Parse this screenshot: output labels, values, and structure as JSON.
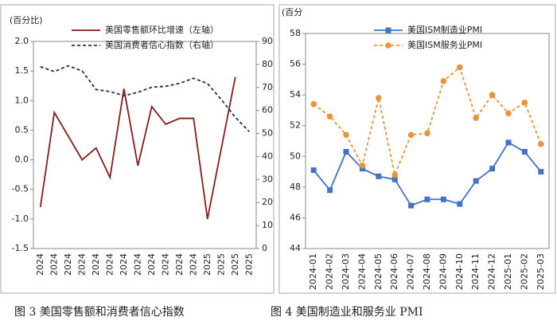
{
  "chart_data": [
    {
      "type": "line",
      "ylabel": "(百分比)",
      "categories": [
        "2024",
        "2024",
        "2024",
        "2024",
        "2024",
        "2024",
        "2024",
        "2024",
        "2024",
        "2024",
        "2024",
        "2024",
        "2025",
        "2025",
        "2025",
        "2025"
      ],
      "ylim": [
        -1.5,
        2.0
      ],
      "yticks": [
        -1.5,
        {
          "value": -1.0,
          "label": "-1.0"
        },
        -0.5,
        {
          "value": 0,
          "label": "0.0"
        },
        0.5,
        {
          "value": 1.0,
          "label": "1.0"
        },
        1.5,
        {
          "value": 2.0,
          "label": "2.0"
        }
      ],
      "y2lim": [
        0,
        90
      ],
      "y2ticks": [
        0,
        10,
        20,
        30,
        40,
        50,
        60,
        70,
        80,
        90
      ],
      "series": [
        {
          "name": "美国零售额环比增速（左轴）",
          "color": "#8b1a1a",
          "dashed": false,
          "values": [
            -0.8,
            0.8,
            0.4,
            0.0,
            0.2,
            -0.3,
            1.2,
            -0.1,
            0.9,
            0.6,
            0.7,
            0.7,
            -1.0,
            0.2,
            1.4,
            null
          ]
        },
        {
          "name": "美国消费者信心指数（右轴）",
          "color": "#1f2d5a",
          "dashed": true,
          "axis": "y2",
          "values": [
            79.0,
            76.9,
            79.4,
            77.2,
            69.1,
            68.2,
            66.4,
            67.9,
            70.1,
            70.5,
            71.8,
            74.0,
            71.7,
            64.7,
            57.0,
            50.8
          ]
        }
      ]
    },
    {
      "type": "line",
      "ylabel": "(百分",
      "categories": [
        "2024-01",
        "2024-02",
        "2024-03",
        "2024-04",
        "2024-05",
        "2024-06",
        "2024-07",
        "2024-08",
        "2024-09",
        "2024-10",
        "2024-11",
        "2024-12",
        "2025-01",
        "2025-02",
        "2025-03"
      ],
      "ylim": [
        44,
        58
      ],
      "yticks": [
        44,
        46,
        48,
        50,
        52,
        54,
        56,
        58
      ],
      "series": [
        {
          "name": "美国ISM制造业PMI",
          "color": "#4472c4",
          "dashed": false,
          "marker": "square",
          "values": [
            49.1,
            47.8,
            50.3,
            49.2,
            48.7,
            48.5,
            46.8,
            47.2,
            47.2,
            46.9,
            48.4,
            49.2,
            50.9,
            50.3,
            49.0
          ]
        },
        {
          "name": "美国ISM服务业PMI",
          "color": "#e8943a",
          "dashed": true,
          "marker": "circle",
          "values": [
            53.4,
            52.6,
            51.4,
            49.4,
            53.8,
            48.8,
            51.4,
            51.5,
            54.9,
            55.8,
            52.5,
            54.0,
            52.8,
            53.5,
            50.8
          ]
        }
      ]
    }
  ],
  "captions": [
    "图 3   美国零售额和消费者信心指数",
    "图 4   美国制造业和服务业 PMI"
  ]
}
